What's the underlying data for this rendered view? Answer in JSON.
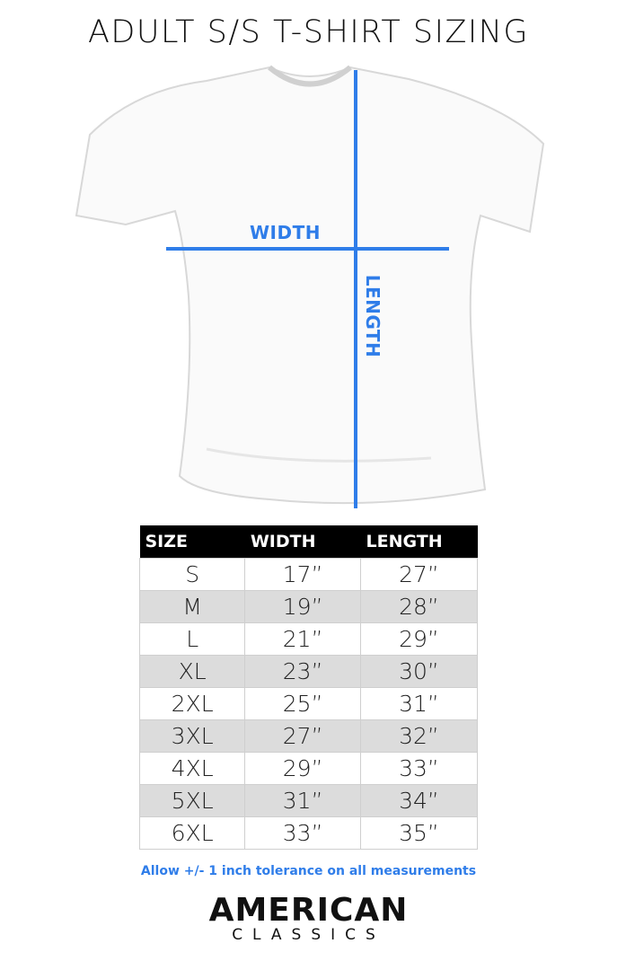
{
  "title": "ADULT S/S T-SHIRT SIZING",
  "diagram": {
    "width_label": "WIDTH",
    "length_label": "LENGTH",
    "line_color": "#2f7de9"
  },
  "table": {
    "headers": [
      "SIZE",
      "WIDTH",
      "LENGTH"
    ],
    "rows": [
      [
        "S",
        "17”",
        "27”"
      ],
      [
        "M",
        "19”",
        "28”"
      ],
      [
        "L",
        "21”",
        "29”"
      ],
      [
        "XL",
        "23”",
        "30”"
      ],
      [
        "2XL",
        "25”",
        "31”"
      ],
      [
        "3XL",
        "27”",
        "32”"
      ],
      [
        "4XL",
        "29”",
        "33”"
      ],
      [
        "5XL",
        "31”",
        "34”"
      ],
      [
        "6XL",
        "33”",
        "35”"
      ]
    ]
  },
  "note": "Allow +/- 1 inch tolerance on all measurements",
  "logo": {
    "line1": "AMERICAN",
    "line2": "CLASSICS"
  }
}
